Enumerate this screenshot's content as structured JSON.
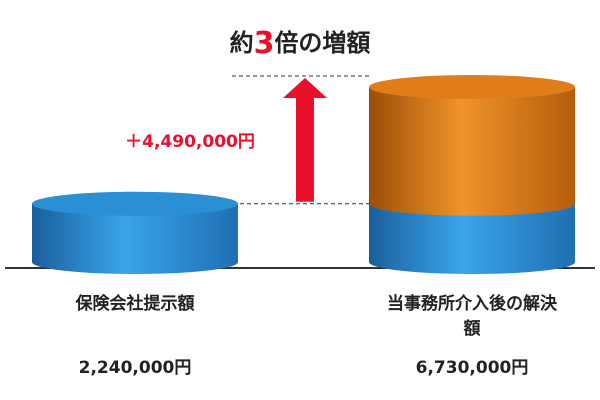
{
  "chart_data": {
    "type": "stacked-cylinder",
    "title_parts": [
      "約",
      "3",
      "倍の増額"
    ],
    "title_highlight_color": "#e8102a",
    "categories": [
      "保険会社提示額",
      "当事務所介入後の解決額"
    ],
    "series": [
      {
        "color": "#2b8fd6",
        "values": [
          2240000,
          2240000
        ]
      },
      {
        "color": "#e07d18",
        "values": [
          null,
          4490000
        ],
        "value_labels": [
          null,
          "＋4,490,000円"
        ]
      }
    ],
    "total_values": [
      2240000,
      6730000
    ],
    "total_labels": [
      "2,240,000円",
      "6,730,000円"
    ]
  }
}
